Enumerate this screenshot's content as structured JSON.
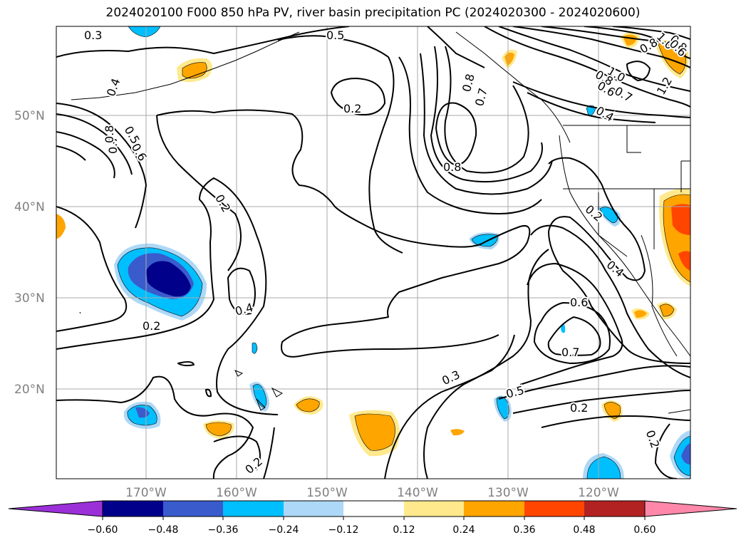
{
  "title": "2024020100 F000 850 hPa PV, river basin precipitation PC (2024020300 - 2024020600)",
  "map": {
    "lat_labels": [
      "50°N",
      "40°N",
      "30°N",
      "20°N"
    ],
    "lon_labels": [
      "170°W",
      "160°W",
      "150°W",
      "140°W",
      "130°W",
      "120°W"
    ]
  },
  "contour_labels": [
    "0.3",
    "0.5",
    "0.4",
    "0.2",
    "0.8",
    "0.7",
    "0.8",
    "0.5",
    "0.6",
    "0.7",
    "0.8",
    "1.0",
    "0.8",
    "0.6",
    "1.2",
    "1.0",
    "0.8",
    "0.7",
    "0.6",
    "0.4",
    "0.2",
    "0.8",
    "0.2",
    "0.4",
    "0.2",
    "0.4",
    "0.6",
    "0.7",
    "0.3",
    "0.5",
    "0.2",
    "0.2",
    "0.2"
  ],
  "colorbar": {
    "colors": [
      "#9b30d9",
      "#00008b",
      "#3a5bcc",
      "#00bfff",
      "#add8f7",
      "#ffffff",
      "#ffe98c",
      "#ffa500",
      "#ff4500",
      "#b22222",
      "#ff88aa"
    ],
    "ticks": [
      "−0.60",
      "−0.48",
      "−0.36",
      "−0.24",
      "−0.12",
      "0.12",
      "0.24",
      "0.36",
      "0.48",
      "0.60"
    ]
  }
}
